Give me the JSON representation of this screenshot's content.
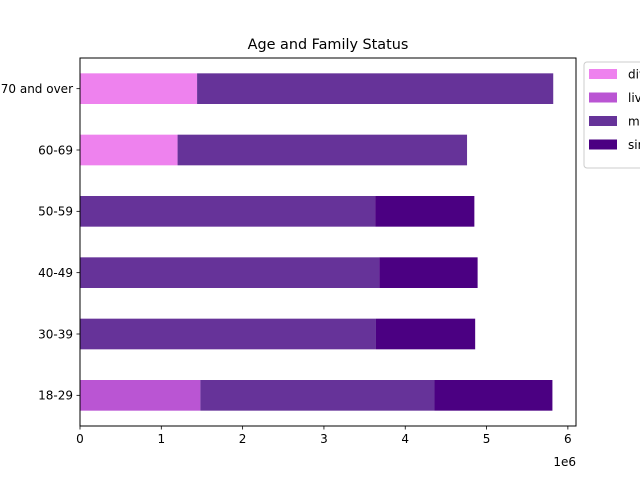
{
  "chart_data": {
    "type": "bar",
    "orientation": "horizontal",
    "stacked": true,
    "title": "Age and Family Status",
    "xlabel": "",
    "ylabel": "",
    "x_offset_label": "1e6",
    "x_scale": 1000000,
    "xlim": [
      0,
      6100000
    ],
    "x_ticks": [
      0,
      1,
      2,
      3,
      4,
      5,
      6
    ],
    "categories": [
      "18-29",
      "30-39",
      "40-49",
      "50-59",
      "60-69",
      "70 and over"
    ],
    "grid": false,
    "legend_position": "outside-upper-right",
    "series": [
      {
        "name": "divorced",
        "color": "#EE82EE",
        "values": [
          0,
          0,
          0,
          0,
          1200000,
          1440000
        ]
      },
      {
        "name": "living with partner",
        "color": "#BA55D3",
        "values": [
          1480000,
          0,
          0,
          0,
          0,
          0
        ]
      },
      {
        "name": "married",
        "color": "#663399",
        "values": [
          2880000,
          3640000,
          3680000,
          3630000,
          3560000,
          4380000
        ]
      },
      {
        "name": "single",
        "color": "#4B0082",
        "values": [
          1450000,
          1220000,
          1210000,
          1220000,
          0,
          0
        ]
      }
    ]
  }
}
